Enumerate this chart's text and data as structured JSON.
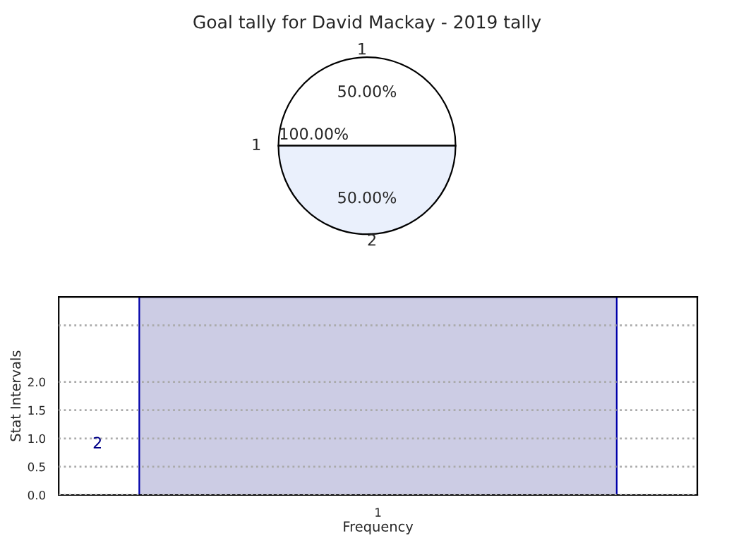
{
  "chart_data": [
    {
      "type": "pie",
      "title": "Goal tally for David Mackay - 2019 tally",
      "categories": [
        "1",
        "2"
      ],
      "values": [
        50,
        50
      ],
      "colors": [
        "#ffffff",
        "#eaf0fc"
      ],
      "value_labels": [
        "50.00%",
        "50.00%"
      ],
      "annotations": [
        "1",
        "100.00%"
      ]
    },
    {
      "type": "bar",
      "categories": [
        "1"
      ],
      "values": [
        3.5
      ],
      "color": "#cccce4",
      "xlabel": "Frequency",
      "ylabel": "Stat Intervals",
      "ylim": [
        0,
        3.5
      ],
      "yticks": [
        {
          "value": 0,
          "label": "0.0"
        },
        {
          "value": 0.5,
          "label": "0.5"
        },
        {
          "value": 1,
          "label": "1.0"
        },
        {
          "value": 1.5,
          "label": "1.5"
        },
        {
          "value": 2,
          "label": "2.0"
        },
        {
          "value": 3,
          "label": null
        }
      ],
      "grid": "y",
      "annotations": [
        "2"
      ]
    }
  ]
}
